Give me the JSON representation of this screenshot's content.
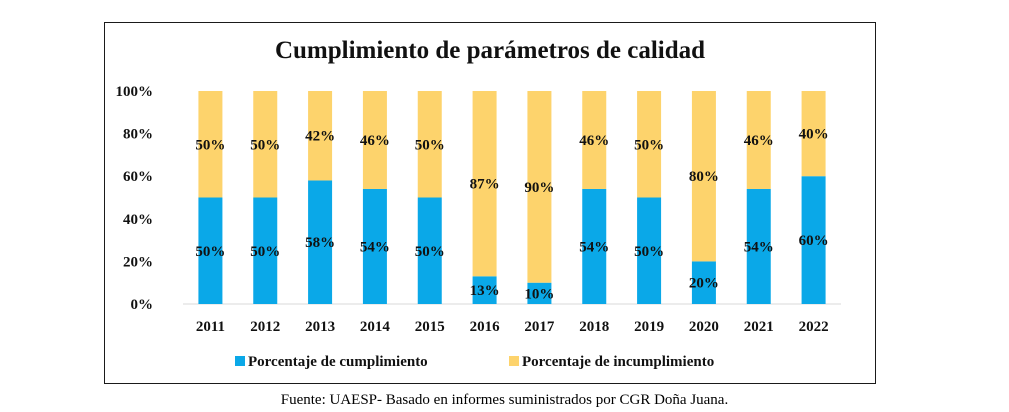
{
  "chart_data": {
    "type": "bar",
    "stacked": true,
    "title": "Cumplimiento de parámetros de calidad",
    "categories": [
      "2011",
      "2012",
      "2013",
      "2014",
      "2015",
      "2016",
      "2017",
      "2018",
      "2019",
      "2020",
      "2021",
      "2022"
    ],
    "series": [
      {
        "name": "Porcentaje de cumplimiento",
        "color": "#0aa8e8",
        "values": [
          50,
          50,
          58,
          54,
          50,
          13,
          10,
          54,
          50,
          20,
          54,
          60
        ],
        "labels": [
          "50%",
          "50%",
          "58%",
          "54%",
          "50%",
          "13%",
          "10%",
          "54%",
          "50%",
          "20%",
          "54%",
          "60%"
        ]
      },
      {
        "name": "Porcentaje de incumplimiento",
        "color": "#fdd36c",
        "values": [
          50,
          50,
          42,
          46,
          50,
          87,
          90,
          46,
          50,
          80,
          46,
          40
        ],
        "labels": [
          "50%",
          "50%",
          "42%",
          "46%",
          "50%",
          "87%",
          "90%",
          "46%",
          "50%",
          "80%",
          "46%",
          "40%"
        ]
      }
    ],
    "ylim": [
      0,
      100
    ],
    "yticks": [
      "0%",
      "20%",
      "40%",
      "60%",
      "80%",
      "100%"
    ],
    "grid": false,
    "legend": "bottom"
  },
  "caption": "Fuente: UAESP- Basado en informes suministrados por CGR Doña Juana."
}
